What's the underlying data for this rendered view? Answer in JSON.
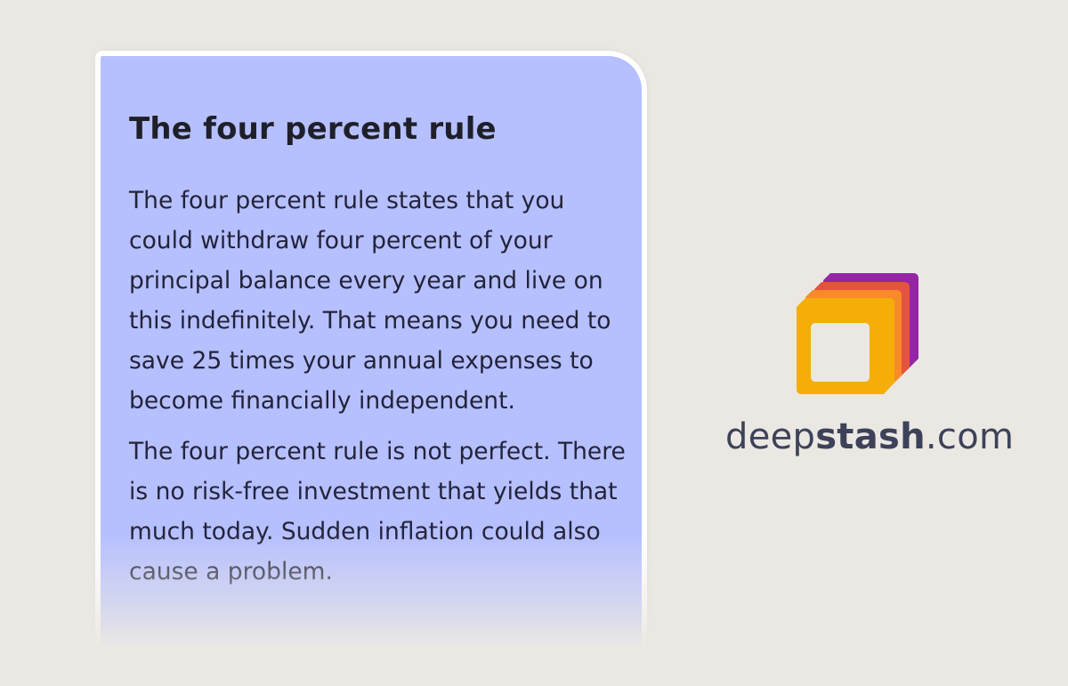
{
  "card": {
    "title": "The four percent rule",
    "paragraphs": [
      "The four percent rule states that you could withdraw four percent of your principal balance every year and live on this indefinitely. That means you need to save 25 times your annual expenses to become financially independent.",
      "The four percent rule is not perfect. There is no risk-free investment that yields that much today. Sudden inflation could also cause a problem."
    ],
    "background_color": "#b6c0ff"
  },
  "brand": {
    "prefix": "deep",
    "bold": "stash",
    "suffix": ".com",
    "logo_colors": [
      "#9426a6",
      "#e4533f",
      "#f98a28",
      "#f5ad08"
    ]
  }
}
